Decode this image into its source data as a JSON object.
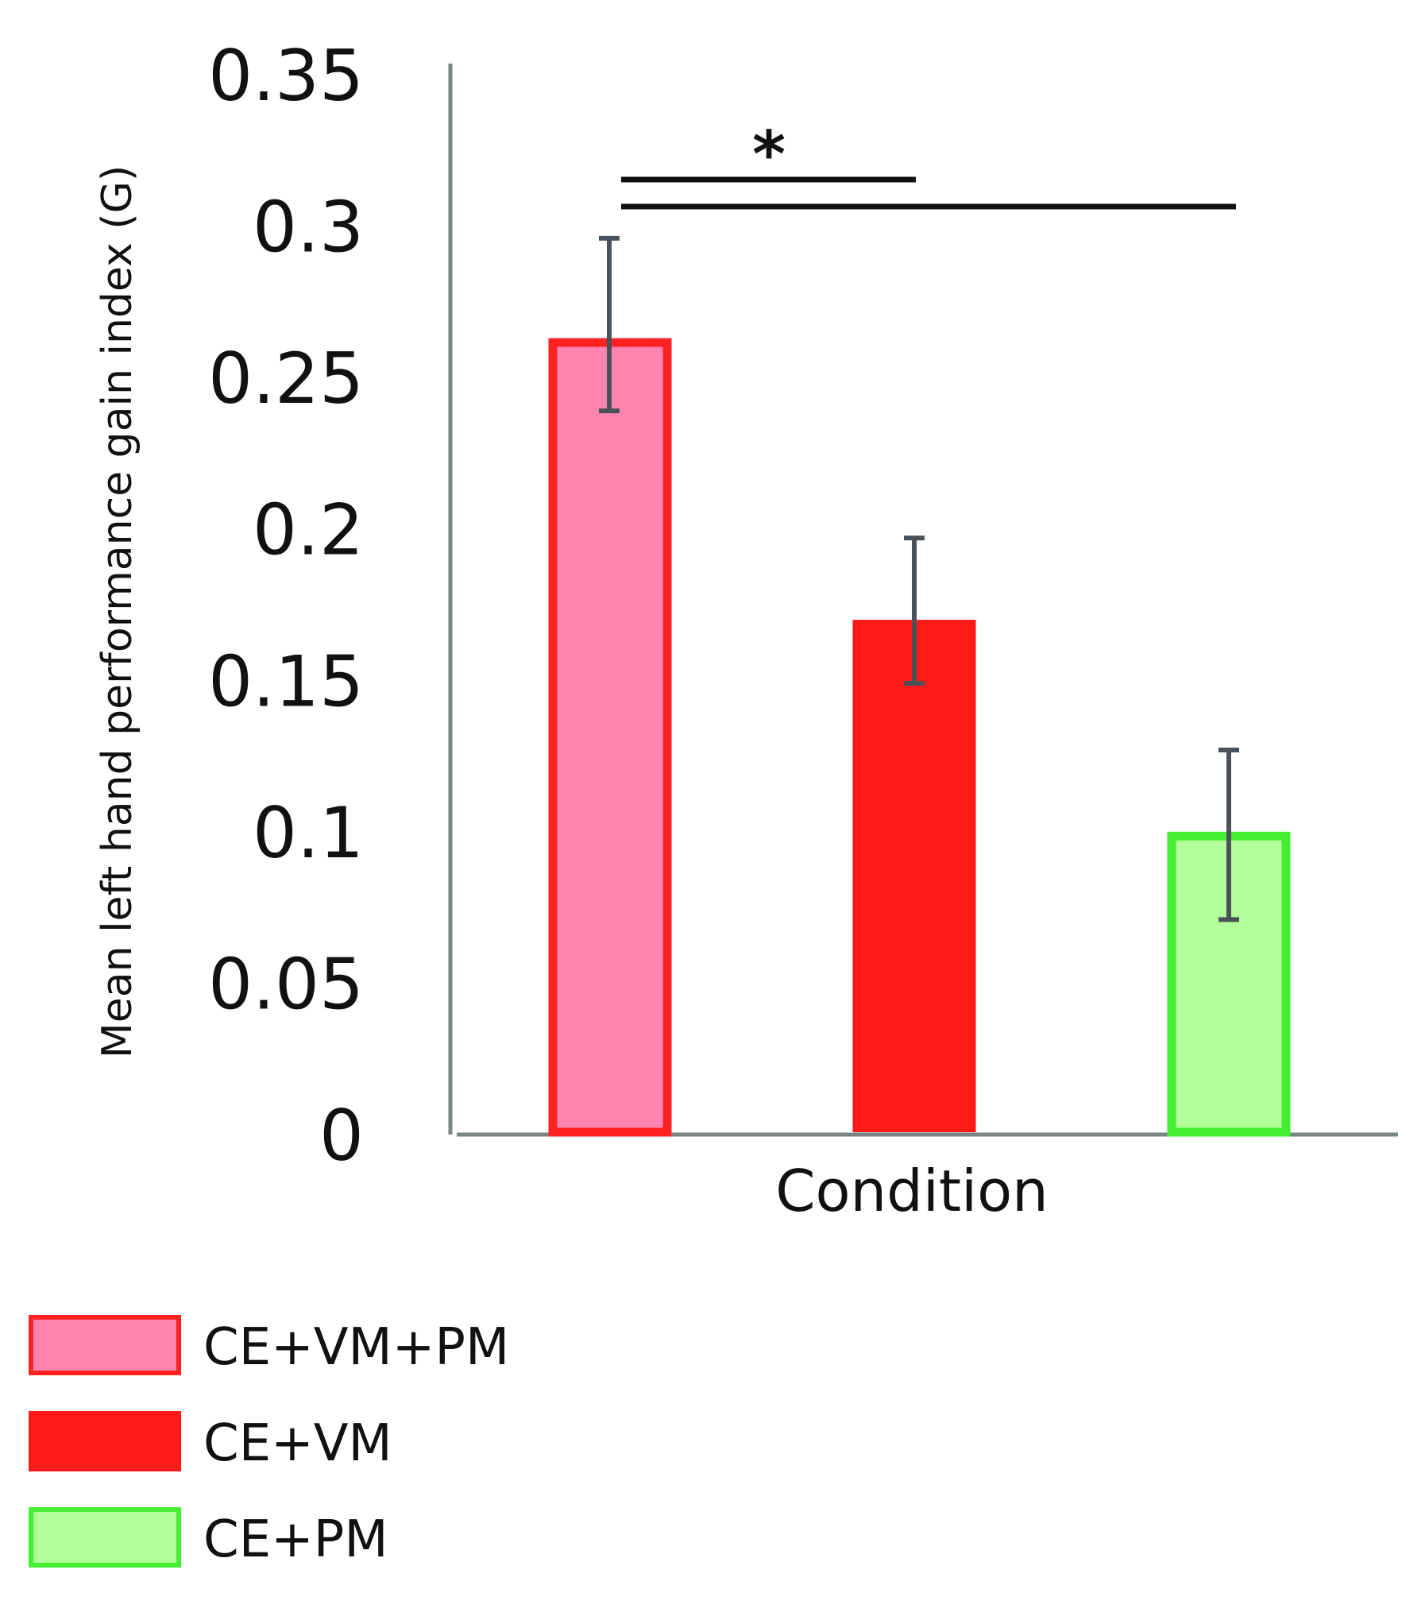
{
  "chart_data": {
    "type": "bar",
    "title": "",
    "xlabel": "Condition",
    "ylabel": "Mean left hand performance gain index (G)",
    "ylim": [
      0,
      0.35
    ],
    "yticks": [
      "0",
      "0.05",
      "0.1",
      "0.15",
      "0.2",
      "0.25",
      "0.3",
      "0.35"
    ],
    "grid": false,
    "legend_position": "bottom-left",
    "categories": [
      "CE+VM+PM",
      "CE+VM",
      "CE+PM"
    ],
    "values": [
      0.263,
      0.17,
      0.1
    ],
    "error_low": [
      0.239,
      0.149,
      0.071
    ],
    "error_high": [
      0.296,
      0.197,
      0.127
    ],
    "bar_fill_colors": [
      "#ff85b0",
      "#ff1a1a",
      "#b3ff99"
    ],
    "bar_edge_colors": [
      "#ff2222",
      "#ff1a1a",
      "#44ee33"
    ],
    "error_bar_color": "#4a5258",
    "axis_color": "#7a8584",
    "significance": {
      "label": "*",
      "comparisons": [
        {
          "from": "CE+VM+PM",
          "to": "CE+VM"
        },
        {
          "from": "CE+VM+PM",
          "to": "CE+PM"
        }
      ]
    }
  }
}
